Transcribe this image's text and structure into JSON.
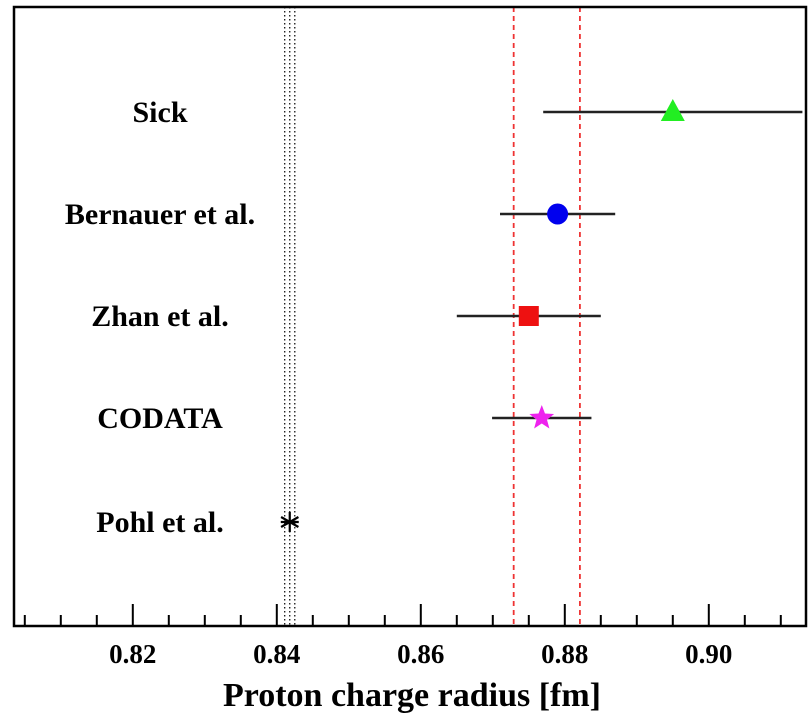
{
  "chart_data": {
    "type": "scatter",
    "xlabel": "Proton charge radius [fm]",
    "xlim": [
      0.8035,
      0.9135
    ],
    "x_ticks": [
      "0.82",
      "0.84",
      "0.86",
      "0.88",
      "0.90"
    ],
    "x_tick_values": [
      0.82,
      0.84,
      0.86,
      0.88,
      0.9
    ],
    "grid": false,
    "legend": "none",
    "series": [
      {
        "name": "Sick",
        "x": 0.895,
        "err_low": 0.018,
        "err_high": 0.018,
        "marker": "triangle",
        "color": "#22ee22"
      },
      {
        "name": "Bernauer et al.",
        "x": 0.879,
        "err_low": 0.008,
        "err_high": 0.008,
        "marker": "circle",
        "color": "#0000ee"
      },
      {
        "name": "Zhan et al.",
        "x": 0.875,
        "err_low": 0.01,
        "err_high": 0.01,
        "marker": "square",
        "color": "#ee1111"
      },
      {
        "name": "CODATA",
        "x": 0.8768,
        "err_low": 0.0069,
        "err_high": 0.0069,
        "marker": "star",
        "color": "#ee22ee"
      },
      {
        "name": "Pohl et al.",
        "x": 0.8418,
        "err_low": 0.0007,
        "err_high": 0.0007,
        "marker": "asterisk",
        "color": "#000000"
      }
    ],
    "bands": [
      {
        "x_low": 0.8411,
        "x_high": 0.8425,
        "center": 0.8418,
        "color": "#000000",
        "style": "dotted"
      },
      {
        "x_low": 0.8729,
        "x_high": 0.8821,
        "color": "#ee3333",
        "style": "dashed"
      }
    ]
  }
}
